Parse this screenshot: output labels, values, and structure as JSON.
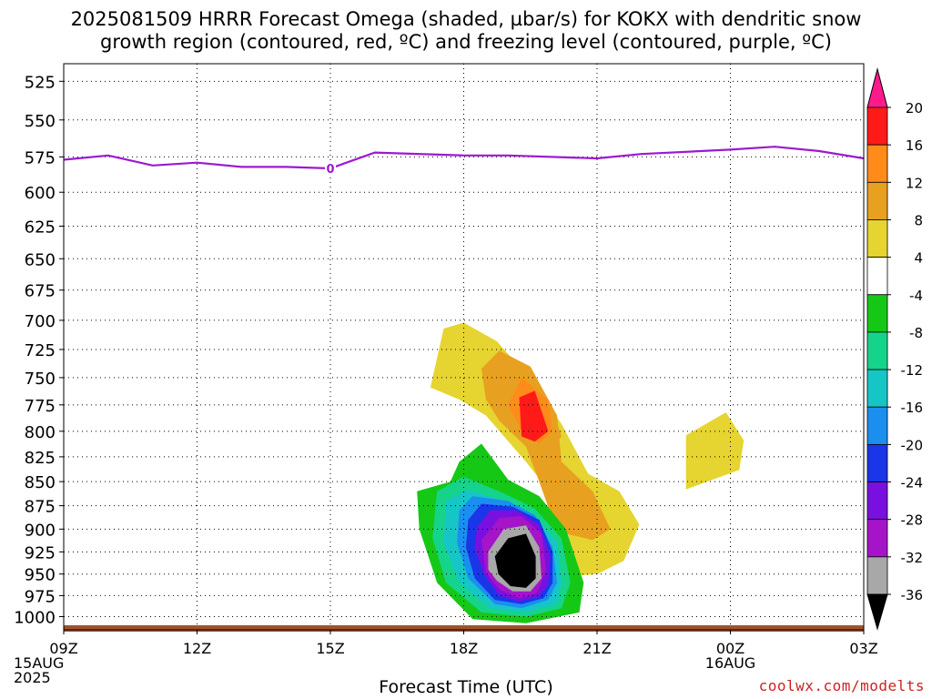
{
  "title_line1": "2025081509 HRRR Forecast Omega (shaded, µbar/s) for KOKX with dendritic snow",
  "title_line2": "growth region (contoured, red, ºC) and freezing level (contoured, purple, ºC)",
  "credit": "coolwx.com/modelts",
  "chart_data": {
    "type": "contour",
    "xlabel": "Forecast Time (UTC)",
    "x_ticks": [
      {
        "h": 0,
        "lines": [
          "09Z",
          "15AUG",
          "2025"
        ]
      },
      {
        "h": 3,
        "lines": [
          "12Z"
        ]
      },
      {
        "h": 6,
        "lines": [
          "15Z"
        ]
      },
      {
        "h": 9,
        "lines": [
          "18Z"
        ]
      },
      {
        "h": 12,
        "lines": [
          "21Z"
        ]
      },
      {
        "h": 15,
        "lines": [
          "00Z",
          "16AUG"
        ]
      },
      {
        "h": 18,
        "lines": [
          "03Z"
        ]
      }
    ],
    "xlim": [
      0,
      18
    ],
    "y_ticks": [
      525,
      550,
      575,
      600,
      625,
      650,
      675,
      700,
      725,
      750,
      775,
      800,
      825,
      850,
      875,
      900,
      925,
      950,
      975,
      1000
    ],
    "ylim": [
      1016,
      514
    ],
    "y_scale": "log-pressure",
    "grid": true,
    "colorbar": {
      "labels": [
        "20",
        "16",
        "12",
        "8",
        "4",
        "-4",
        "-8",
        "-12",
        "-16",
        "-20",
        "-24",
        "-28",
        "-32",
        "-36"
      ],
      "colors": [
        "#ff1a1a",
        "#ff8c1a",
        "#e8a020",
        "#e6d430",
        "#ffffff",
        "#16c816",
        "#16d38b",
        "#16c6c6",
        "#1a8fef",
        "#1a36e8",
        "#7a10e0",
        "#a514c8",
        "#a8a8a8"
      ],
      "top_color": "#ff1a8c",
      "bottom_color": "#000000"
    },
    "freezing_level": {
      "color": "#9b1ad1",
      "label": "0",
      "label_h": 6,
      "points": [
        [
          0,
          577
        ],
        [
          1,
          574
        ],
        [
          2,
          581
        ],
        [
          3,
          579
        ],
        [
          4,
          582
        ],
        [
          5,
          582
        ],
        [
          6,
          583
        ],
        [
          7,
          572
        ],
        [
          9,
          574
        ],
        [
          10,
          574
        ],
        [
          12,
          576
        ],
        [
          13,
          573
        ],
        [
          15,
          570
        ],
        [
          16,
          568
        ],
        [
          17,
          571
        ],
        [
          18,
          576
        ]
      ]
    },
    "omega_regions": [
      {
        "label": "4",
        "color": "#e6d430",
        "points": [
          [
            8.25,
            759
          ],
          [
            8.55,
            707
          ],
          [
            9.0,
            702
          ],
          [
            9.75,
            718
          ],
          [
            10.5,
            752
          ],
          [
            11.2,
            793
          ],
          [
            11.8,
            842
          ],
          [
            12.5,
            860
          ],
          [
            12.95,
            895
          ],
          [
            12.6,
            935
          ],
          [
            12.0,
            950
          ],
          [
            11.5,
            952
          ],
          [
            11.5,
            930
          ],
          [
            11.1,
            870
          ],
          [
            10.4,
            830
          ],
          [
            9.5,
            785
          ],
          [
            8.9,
            770
          ]
        ]
      },
      {
        "label": "4",
        "color": "#e6d430",
        "points": [
          [
            14.0,
            804
          ],
          [
            14.9,
            782
          ],
          [
            15.3,
            809
          ],
          [
            15.2,
            838
          ],
          [
            14.0,
            858
          ]
        ]
      },
      {
        "label": "8",
        "color": "#e8a020",
        "points": [
          [
            9.4,
            742
          ],
          [
            9.8,
            726
          ],
          [
            10.5,
            740
          ],
          [
            11.1,
            785
          ],
          [
            11.2,
            830
          ],
          [
            11.9,
            860
          ],
          [
            12.3,
            900
          ],
          [
            11.9,
            912
          ],
          [
            11.3,
            905
          ],
          [
            11.0,
            890
          ],
          [
            10.7,
            850
          ],
          [
            10.4,
            815
          ],
          [
            9.8,
            790
          ],
          [
            9.5,
            770
          ]
        ]
      },
      {
        "label": "12",
        "color": "#e8a020",
        "points": [
          [
            10.0,
            736
          ],
          [
            10.6,
            748
          ],
          [
            11.0,
            780
          ],
          [
            11.2,
            805
          ],
          [
            10.9,
            822
          ],
          [
            10.6,
            818
          ],
          [
            10.3,
            800
          ],
          [
            10.0,
            790
          ],
          [
            9.7,
            770
          ],
          [
            9.7,
            750
          ]
        ]
      },
      {
        "label": "16",
        "color": "#ff8c1a",
        "points": [
          [
            10.3,
            750
          ],
          [
            10.9,
            770
          ],
          [
            11.0,
            800
          ],
          [
            10.7,
            812
          ],
          [
            10.3,
            800
          ],
          [
            10.0,
            775
          ]
        ]
      },
      {
        "label": "20",
        "color": "#ff1a1a",
        "points": [
          [
            10.25,
            768
          ],
          [
            10.6,
            762
          ],
          [
            10.9,
            800
          ],
          [
            10.6,
            810
          ],
          [
            10.3,
            805
          ]
        ]
      },
      {
        "label": "-4",
        "color": "#16c816",
        "points": [
          [
            8.7,
            850
          ],
          [
            8.9,
            830
          ],
          [
            9.4,
            812
          ],
          [
            10.0,
            848
          ],
          [
            10.7,
            865
          ],
          [
            11.3,
            900
          ],
          [
            11.7,
            960
          ],
          [
            11.6,
            995
          ],
          [
            10.4,
            1008
          ],
          [
            9.2,
            1003
          ],
          [
            8.4,
            960
          ],
          [
            8.0,
            900
          ],
          [
            7.95,
            860
          ]
        ]
      },
      {
        "label": "-8",
        "color": "#16d38b",
        "points": [
          [
            8.4,
            860
          ],
          [
            9.0,
            845
          ],
          [
            9.9,
            862
          ],
          [
            10.6,
            878
          ],
          [
            11.2,
            910
          ],
          [
            11.4,
            960
          ],
          [
            11.2,
            990
          ],
          [
            10.4,
            1000
          ],
          [
            9.4,
            995
          ],
          [
            8.6,
            960
          ],
          [
            8.3,
            910
          ]
        ]
      },
      {
        "label": "-12",
        "color": "#16c6c6",
        "points": [
          [
            8.6,
            870
          ],
          [
            9.1,
            858
          ],
          [
            9.9,
            870
          ],
          [
            10.6,
            885
          ],
          [
            11.1,
            915
          ],
          [
            11.2,
            960
          ],
          [
            11.1,
            985
          ],
          [
            10.4,
            995
          ],
          [
            9.6,
            990
          ],
          [
            8.9,
            960
          ],
          [
            8.55,
            915
          ]
        ]
      },
      {
        "label": "-16",
        "color": "#1a8fef",
        "points": [
          [
            8.9,
            880
          ],
          [
            9.2,
            865
          ],
          [
            10.0,
            870
          ],
          [
            10.6,
            885
          ],
          [
            11.0,
            920
          ],
          [
            11.1,
            960
          ],
          [
            10.9,
            980
          ],
          [
            10.3,
            990
          ],
          [
            9.7,
            985
          ],
          [
            9.1,
            955
          ],
          [
            8.85,
            915
          ]
        ]
      },
      {
        "label": "-20",
        "color": "#1a36e8",
        "points": [
          [
            9.1,
            890
          ],
          [
            9.4,
            873
          ],
          [
            10.1,
            876
          ],
          [
            10.7,
            890
          ],
          [
            11.0,
            925
          ],
          [
            11.0,
            960
          ],
          [
            10.8,
            978
          ],
          [
            10.3,
            985
          ],
          [
            9.7,
            980
          ],
          [
            9.25,
            955
          ],
          [
            9.05,
            920
          ]
        ]
      },
      {
        "label": "-24",
        "color": "#7a10e0",
        "points": [
          [
            9.3,
            898
          ],
          [
            9.6,
            880
          ],
          [
            10.2,
            880
          ],
          [
            10.7,
            895
          ],
          [
            10.95,
            930
          ],
          [
            10.9,
            962
          ],
          [
            10.7,
            976
          ],
          [
            10.25,
            982
          ],
          [
            9.8,
            975
          ],
          [
            9.45,
            950
          ],
          [
            9.25,
            920
          ]
        ]
      },
      {
        "label": "-28",
        "color": "#a514c8",
        "points": [
          [
            9.4,
            912
          ],
          [
            9.8,
            888
          ],
          [
            10.3,
            886
          ],
          [
            10.75,
            905
          ],
          [
            10.85,
            945
          ],
          [
            10.65,
            972
          ],
          [
            10.25,
            978
          ],
          [
            9.8,
            968
          ],
          [
            9.5,
            948
          ]
        ]
      },
      {
        "label": "-32",
        "color": "#a8a8a8",
        "points": [
          [
            9.55,
            925
          ],
          [
            9.9,
            900
          ],
          [
            10.4,
            896
          ],
          [
            10.7,
            920
          ],
          [
            10.75,
            955
          ],
          [
            10.5,
            970
          ],
          [
            10.1,
            970
          ],
          [
            9.75,
            958
          ],
          [
            9.55,
            945
          ]
        ]
      },
      {
        "label": "-36",
        "color": "#000000",
        "points": [
          [
            9.7,
            930
          ],
          [
            10.0,
            910
          ],
          [
            10.4,
            905
          ],
          [
            10.62,
            930
          ],
          [
            10.62,
            955
          ],
          [
            10.4,
            966
          ],
          [
            10.05,
            964
          ],
          [
            9.78,
            950
          ]
        ]
      }
    ]
  }
}
